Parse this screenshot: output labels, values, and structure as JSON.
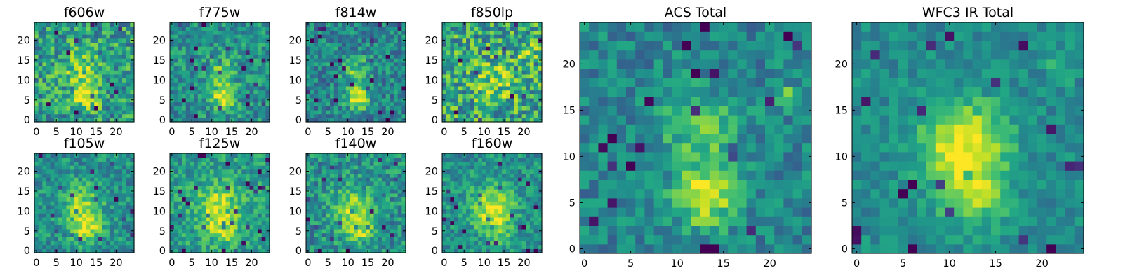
{
  "chart_data": {
    "type": "heatmap",
    "colormap": "viridis",
    "grid_size": 25,
    "panels": [
      {
        "id": "f606w",
        "title": "f606w",
        "xticks": [
          "0",
          "5",
          "10",
          "15",
          "20"
        ],
        "yticks": [
          "0",
          "5",
          "10",
          "15",
          "20"
        ],
        "blobs": [
          {
            "x": 12.5,
            "y": 6,
            "s": 2.2,
            "a": 0.45
          },
          {
            "x": 11,
            "y": 13,
            "s": 3.5,
            "a": 0.22
          }
        ],
        "noise": 0.26,
        "base": 0.55,
        "seed": 11
      },
      {
        "id": "f775w",
        "title": "f775w",
        "xticks": [
          "0",
          "5",
          "10",
          "15",
          "20"
        ],
        "yticks": [
          "0",
          "5",
          "10",
          "15",
          "20"
        ],
        "blobs": [
          {
            "x": 13,
            "y": 5.5,
            "s": 2.0,
            "a": 0.5
          },
          {
            "x": 12,
            "y": 12,
            "s": 3.0,
            "a": 0.22
          }
        ],
        "noise": 0.2,
        "base": 0.5,
        "seed": 23
      },
      {
        "id": "f814w",
        "title": "f814w",
        "xticks": [
          "0",
          "5",
          "10",
          "15",
          "20"
        ],
        "yticks": [
          "0",
          "5",
          "10",
          "15",
          "20"
        ],
        "blobs": [
          {
            "x": 12.5,
            "y": 5.5,
            "s": 2.0,
            "a": 0.55
          },
          {
            "x": 12,
            "y": 12.5,
            "s": 2.6,
            "a": 0.28
          }
        ],
        "noise": 0.2,
        "base": 0.45,
        "seed": 37
      },
      {
        "id": "f850lp",
        "title": "f850lp",
        "xticks": [
          "0",
          "5",
          "10",
          "15",
          "20"
        ],
        "yticks": [
          "0",
          "5",
          "10",
          "15",
          "20"
        ],
        "blobs": [
          {
            "x": 13,
            "y": 9,
            "s": 3.5,
            "a": 0.25
          },
          {
            "x": 21,
            "y": 17,
            "s": 1.5,
            "a": 0.35
          }
        ],
        "noise": 0.3,
        "base": 0.58,
        "seed": 41
      },
      {
        "id": "f105w",
        "title": "f105w",
        "xticks": [
          "0",
          "5",
          "10",
          "15",
          "20"
        ],
        "yticks": [
          "0",
          "5",
          "10",
          "15",
          "20"
        ],
        "blobs": [
          {
            "x": 12.5,
            "y": 6,
            "s": 2.5,
            "a": 0.45
          },
          {
            "x": 11.5,
            "y": 12,
            "s": 3.5,
            "a": 0.3
          }
        ],
        "noise": 0.18,
        "base": 0.5,
        "seed": 53
      },
      {
        "id": "f125w",
        "title": "f125w",
        "xticks": [
          "0",
          "5",
          "10",
          "15",
          "20"
        ],
        "yticks": [
          "0",
          "5",
          "10",
          "15",
          "20"
        ],
        "blobs": [
          {
            "x": 11.5,
            "y": 11,
            "s": 3.8,
            "a": 0.38
          },
          {
            "x": 13,
            "y": 5,
            "s": 2.5,
            "a": 0.25
          }
        ],
        "noise": 0.18,
        "base": 0.55,
        "seed": 67
      },
      {
        "id": "f140w",
        "title": "f140w",
        "xticks": [
          "0",
          "5",
          "10",
          "15",
          "20"
        ],
        "yticks": [
          "0",
          "5",
          "10",
          "15",
          "20"
        ],
        "blobs": [
          {
            "x": 11,
            "y": 11,
            "s": 3.5,
            "a": 0.35
          },
          {
            "x": 13,
            "y": 5,
            "s": 2.5,
            "a": 0.3
          }
        ],
        "noise": 0.2,
        "base": 0.5,
        "seed": 79
      },
      {
        "id": "f160w",
        "title": "f160w",
        "xticks": [
          "0",
          "5",
          "10",
          "15",
          "20"
        ],
        "yticks": [
          "0",
          "5",
          "10",
          "15",
          "20"
        ],
        "blobs": [
          {
            "x": 12,
            "y": 11,
            "s": 3.8,
            "a": 0.42
          },
          {
            "x": 13,
            "y": 5,
            "s": 2.5,
            "a": 0.22
          }
        ],
        "noise": 0.17,
        "base": 0.5,
        "seed": 83
      },
      {
        "id": "acs-total",
        "title": "ACS Total",
        "xticks": [
          "0",
          "5",
          "10",
          "15",
          "20"
        ],
        "yticks": [
          "0",
          "5",
          "10",
          "15",
          "20"
        ],
        "blobs": [
          {
            "x": 13,
            "y": 5.5,
            "s": 2.2,
            "a": 0.5
          },
          {
            "x": 12.5,
            "y": 12.5,
            "s": 3.0,
            "a": 0.28
          },
          {
            "x": 21.5,
            "y": 16.5,
            "s": 0.7,
            "a": 0.4
          }
        ],
        "noise": 0.16,
        "base": 0.45,
        "seed": 97
      },
      {
        "id": "wfc3-ir-total",
        "title": "WFC3 IR Total",
        "xticks": [
          "0",
          "5",
          "10",
          "15",
          "20"
        ],
        "yticks": [
          "0",
          "5",
          "10",
          "15",
          "20"
        ],
        "blobs": [
          {
            "x": 11.5,
            "y": 11.5,
            "s": 3.2,
            "a": 0.5
          },
          {
            "x": 12.5,
            "y": 6,
            "s": 2.5,
            "a": 0.35
          },
          {
            "x": 22,
            "y": 19.5,
            "s": 1.0,
            "a": 0.2
          }
        ],
        "noise": 0.12,
        "base": 0.48,
        "seed": 101
      }
    ]
  }
}
